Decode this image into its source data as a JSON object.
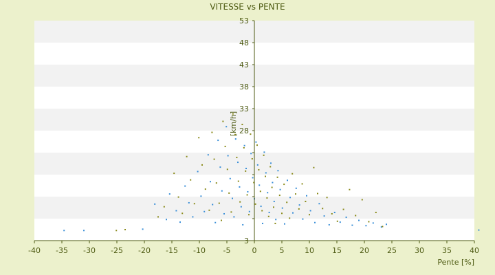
{
  "chart_data": {
    "type": "scatter",
    "title": "VITESSE vs PENTE",
    "xlabel": "Pente [%]",
    "ylabel": "[km/h]",
    "xlim": [
      -40,
      40
    ],
    "ylim": [
      3,
      53
    ],
    "x_ticks": [
      -40,
      -35,
      -30,
      -25,
      -20,
      -15,
      -10,
      -5,
      0,
      5,
      10,
      15,
      20,
      25,
      30,
      35,
      40
    ],
    "y_ticks": [
      3,
      8,
      13,
      18,
      23,
      28,
      33,
      38,
      43,
      48,
      53
    ],
    "y_tick_labels": [
      "3",
      "",
      "",
      "",
      "",
      "28",
      "33",
      "38",
      "43",
      "48",
      "53"
    ],
    "grid": "horizontal alternating bands",
    "legend": "none",
    "colors": {
      "background": "#ecf1cc",
      "plot_band_light": "#ffffff",
      "plot_band_shaded": "#f2f2f2",
      "axis": "#4d5a12",
      "series_1": "#3a8fd8",
      "series_2": "#8a8a1a"
    },
    "series": [
      {
        "color": "#3a8fd8",
        "points": [
          [
            -34.6,
            5.3
          ],
          [
            -31.0,
            5.3
          ],
          [
            -20.3,
            5.6
          ],
          [
            -18.1,
            11.3
          ],
          [
            -16.0,
            7.8
          ],
          [
            -15.4,
            13.6
          ],
          [
            -14.2,
            9.8
          ],
          [
            -13.5,
            7.2
          ],
          [
            -12.6,
            15.4
          ],
          [
            -11.9,
            11.6
          ],
          [
            -11.2,
            8.4
          ],
          [
            -10.3,
            18.7
          ],
          [
            -9.7,
            13.1
          ],
          [
            -9.1,
            9.6
          ],
          [
            -8.4,
            22.5
          ],
          [
            -8.0,
            16.4
          ],
          [
            -7.6,
            11.2
          ],
          [
            -7.1,
            7.1
          ],
          [
            -6.6,
            25.8
          ],
          [
            -6.2,
            19.7
          ],
          [
            -5.9,
            14.3
          ],
          [
            -5.5,
            9.1
          ],
          [
            -5.1,
            28.9
          ],
          [
            -4.8,
            22.3
          ],
          [
            -4.4,
            17.1
          ],
          [
            -4.0,
            12.6
          ],
          [
            -3.7,
            8.4
          ],
          [
            -3.4,
            26.1
          ],
          [
            -3.0,
            20.8
          ],
          [
            -2.7,
            15.2
          ],
          [
            -2.4,
            10.7
          ],
          [
            -2.1,
            6.6
          ],
          [
            -1.8,
            24.6
          ],
          [
            -1.5,
            19.4
          ],
          [
            -1.2,
            14.1
          ],
          [
            -0.9,
            9.6
          ],
          [
            -0.6,
            22.8
          ],
          [
            -0.3,
            17.3
          ],
          [
            0.0,
            12.5
          ],
          [
            0.3,
            25.4
          ],
          [
            0.6,
            20.2
          ],
          [
            0.9,
            15.6
          ],
          [
            1.2,
            10.8
          ],
          [
            1.5,
            6.9
          ],
          [
            1.8,
            23.1
          ],
          [
            2.1,
            18.4
          ],
          [
            2.4,
            13.9
          ],
          [
            2.7,
            9.4
          ],
          [
            3.0,
            20.6
          ],
          [
            3.3,
            16.2
          ],
          [
            3.6,
            11.9
          ],
          [
            3.9,
            7.8
          ],
          [
            4.3,
            18.9
          ],
          [
            4.7,
            14.6
          ],
          [
            5.1,
            10.4
          ],
          [
            5.5,
            6.8
          ],
          [
            6.0,
            16.7
          ],
          [
            6.5,
            12.8
          ],
          [
            7.0,
            9.3
          ],
          [
            7.6,
            14.9
          ],
          [
            8.2,
            11.1
          ],
          [
            8.8,
            7.9
          ],
          [
            9.5,
            13.2
          ],
          [
            10.2,
            9.8
          ],
          [
            11.0,
            7.1
          ],
          [
            11.8,
            11.4
          ],
          [
            12.7,
            8.6
          ],
          [
            13.6,
            6.6
          ],
          [
            14.6,
            9.4
          ],
          [
            15.6,
            7.2
          ],
          [
            16.7,
            8.3
          ],
          [
            17.8,
            6.5
          ],
          [
            19.0,
            7.6
          ],
          [
            20.3,
            6.4
          ],
          [
            21.6,
            7.0
          ],
          [
            23.1,
            6.1
          ],
          [
            24.0,
            6.7
          ],
          [
            40.8,
            5.4
          ]
        ]
      },
      {
        "color": "#8a8a1a",
        "points": [
          [
            -25.1,
            5.3
          ],
          [
            -23.5,
            5.5
          ],
          [
            -17.5,
            8.4
          ],
          [
            -16.4,
            10.7
          ],
          [
            -14.6,
            18.3
          ],
          [
            -13.8,
            12.9
          ],
          [
            -13.1,
            9.2
          ],
          [
            -12.3,
            22.1
          ],
          [
            -11.6,
            16.8
          ],
          [
            -10.9,
            11.4
          ],
          [
            -10.1,
            26.4
          ],
          [
            -9.5,
            20.2
          ],
          [
            -8.9,
            14.7
          ],
          [
            -8.2,
            9.9
          ],
          [
            -7.7,
            27.6
          ],
          [
            -7.3,
            21.5
          ],
          [
            -6.9,
            16.1
          ],
          [
            -6.4,
            11.5
          ],
          [
            -6.0,
            7.6
          ],
          [
            -5.7,
            30.1
          ],
          [
            -5.3,
            24.4
          ],
          [
            -4.9,
            19.2
          ],
          [
            -4.6,
            13.8
          ],
          [
            -4.2,
            9.5
          ],
          [
            -3.9,
            31.8
          ],
          [
            -3.5,
            27.1
          ],
          [
            -3.2,
            21.9
          ],
          [
            -2.9,
            16.5
          ],
          [
            -2.6,
            11.8
          ],
          [
            -2.2,
            29.4
          ],
          [
            -1.9,
            24.1
          ],
          [
            -1.6,
            18.8
          ],
          [
            -1.3,
            13.4
          ],
          [
            -1.0,
            8.9
          ],
          [
            -0.7,
            27.2
          ],
          [
            -0.4,
            21.6
          ],
          [
            -0.1,
            16.2
          ],
          [
            0.2,
            11.3
          ],
          [
            0.5,
            24.7
          ],
          [
            0.8,
            19.1
          ],
          [
            1.1,
            14.2
          ],
          [
            1.4,
            9.8
          ],
          [
            1.7,
            22.4
          ],
          [
            2.0,
            17.6
          ],
          [
            2.3,
            12.7
          ],
          [
            2.6,
            8.5
          ],
          [
            2.9,
            19.8
          ],
          [
            3.2,
            15.1
          ],
          [
            3.5,
            10.6
          ],
          [
            3.8,
            6.9
          ],
          [
            4.2,
            17.4
          ],
          [
            4.6,
            13.3
          ],
          [
            5.0,
            9.2
          ],
          [
            5.4,
            15.8
          ],
          [
            5.9,
            11.7
          ],
          [
            6.4,
            8.1
          ],
          [
            6.9,
            18.2
          ],
          [
            7.5,
            13.6
          ],
          [
            8.1,
            10.2
          ],
          [
            8.7,
            15.9
          ],
          [
            9.3,
            11.9
          ],
          [
            10.0,
            8.9
          ],
          [
            10.8,
            19.6
          ],
          [
            11.5,
            13.7
          ],
          [
            12.4,
            10.3
          ],
          [
            13.2,
            12.8
          ],
          [
            14.1,
            9.1
          ],
          [
            15.1,
            7.4
          ],
          [
            16.2,
            10.1
          ],
          [
            17.3,
            14.6
          ],
          [
            18.4,
            8.7
          ],
          [
            19.6,
            12.3
          ],
          [
            20.8,
            7.3
          ],
          [
            22.1,
            9.4
          ],
          [
            23.3,
            6.2
          ]
        ]
      }
    ]
  }
}
